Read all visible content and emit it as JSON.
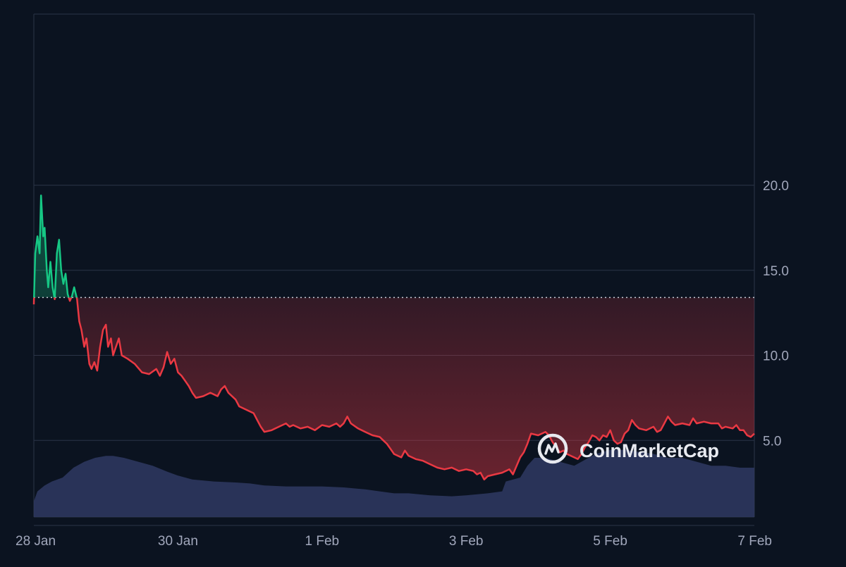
{
  "watermark": {
    "text": "CoinMarketCap",
    "icon": "coinmarketcap-logo-icon"
  },
  "colors": {
    "background": "#0b1320",
    "grid": "#2b3447",
    "up_line": "#16c784",
    "down_line": "#ea3943",
    "baseline": "#c9ced8",
    "volume_fill": "#2f3a63",
    "tick_text": "#a1a7bb"
  },
  "chart_data": {
    "type": "line",
    "title": "",
    "xlabel": "",
    "ylabel": "",
    "x_unit": "days since 28 Jan",
    "x_range": [
      0,
      10
    ],
    "ylim": [
      0,
      25
    ],
    "y_ticks": [
      5.0,
      10.0,
      15.0,
      20.0
    ],
    "y_tick_labels": [
      "5.0",
      "10.0",
      "15.0",
      "20.0"
    ],
    "x_ticks": [
      0,
      2,
      4,
      6,
      8,
      10
    ],
    "x_tick_labels": [
      "28 Jan",
      "30 Jan",
      "1 Feb",
      "3 Feb",
      "5 Feb",
      "7 Feb"
    ],
    "y_axis_position": "right",
    "grid": true,
    "baseline_value": 13.4,
    "series": [
      {
        "kind": "price",
        "points": [
          [
            0.0,
            13.0
          ],
          [
            0.02,
            16.0
          ],
          [
            0.05,
            17.0
          ],
          [
            0.08,
            16.0
          ],
          [
            0.1,
            19.4
          ],
          [
            0.13,
            17.0
          ],
          [
            0.15,
            17.5
          ],
          [
            0.18,
            15.0
          ],
          [
            0.2,
            14.0
          ],
          [
            0.23,
            15.5
          ],
          [
            0.26,
            14.0
          ],
          [
            0.29,
            13.3
          ],
          [
            0.32,
            16.0
          ],
          [
            0.35,
            16.8
          ],
          [
            0.38,
            15.0
          ],
          [
            0.41,
            14.2
          ],
          [
            0.44,
            14.8
          ],
          [
            0.47,
            13.6
          ],
          [
            0.5,
            13.2
          ],
          [
            0.53,
            13.5
          ],
          [
            0.56,
            14.0
          ],
          [
            0.6,
            13.3
          ],
          [
            0.63,
            12.0
          ],
          [
            0.66,
            11.5
          ],
          [
            0.7,
            10.5
          ],
          [
            0.73,
            11.0
          ],
          [
            0.77,
            9.5
          ],
          [
            0.8,
            9.2
          ],
          [
            0.84,
            9.6
          ],
          [
            0.88,
            9.1
          ],
          [
            0.92,
            10.5
          ],
          [
            0.96,
            11.5
          ],
          [
            1.0,
            11.8
          ],
          [
            1.03,
            10.5
          ],
          [
            1.07,
            11.0
          ],
          [
            1.1,
            10.0
          ],
          [
            1.14,
            10.5
          ],
          [
            1.18,
            11.0
          ],
          [
            1.22,
            10.0
          ],
          [
            1.3,
            9.8
          ],
          [
            1.4,
            9.5
          ],
          [
            1.5,
            9.0
          ],
          [
            1.6,
            8.9
          ],
          [
            1.7,
            9.2
          ],
          [
            1.75,
            8.8
          ],
          [
            1.8,
            9.3
          ],
          [
            1.85,
            10.2
          ],
          [
            1.9,
            9.5
          ],
          [
            1.95,
            9.8
          ],
          [
            2.0,
            9.0
          ],
          [
            2.05,
            8.8
          ],
          [
            2.1,
            8.5
          ],
          [
            2.15,
            8.2
          ],
          [
            2.2,
            7.8
          ],
          [
            2.25,
            7.5
          ],
          [
            2.35,
            7.6
          ],
          [
            2.45,
            7.8
          ],
          [
            2.55,
            7.6
          ],
          [
            2.6,
            8.0
          ],
          [
            2.65,
            8.2
          ],
          [
            2.7,
            7.8
          ],
          [
            2.8,
            7.4
          ],
          [
            2.85,
            7.0
          ],
          [
            2.9,
            6.9
          ],
          [
            3.0,
            6.7
          ],
          [
            3.05,
            6.6
          ],
          [
            3.1,
            6.2
          ],
          [
            3.15,
            5.8
          ],
          [
            3.2,
            5.5
          ],
          [
            3.3,
            5.6
          ],
          [
            3.4,
            5.8
          ],
          [
            3.5,
            6.0
          ],
          [
            3.55,
            5.8
          ],
          [
            3.6,
            5.9
          ],
          [
            3.7,
            5.7
          ],
          [
            3.8,
            5.8
          ],
          [
            3.9,
            5.6
          ],
          [
            4.0,
            5.9
          ],
          [
            4.1,
            5.8
          ],
          [
            4.2,
            6.0
          ],
          [
            4.25,
            5.8
          ],
          [
            4.3,
            6.0
          ],
          [
            4.35,
            6.4
          ],
          [
            4.4,
            6.0
          ],
          [
            4.5,
            5.7
          ],
          [
            4.6,
            5.5
          ],
          [
            4.7,
            5.3
          ],
          [
            4.8,
            5.2
          ],
          [
            4.85,
            5.0
          ],
          [
            4.9,
            4.8
          ],
          [
            4.95,
            4.5
          ],
          [
            5.0,
            4.2
          ],
          [
            5.05,
            4.1
          ],
          [
            5.1,
            4.0
          ],
          [
            5.15,
            4.4
          ],
          [
            5.2,
            4.1
          ],
          [
            5.3,
            3.9
          ],
          [
            5.4,
            3.8
          ],
          [
            5.5,
            3.6
          ],
          [
            5.6,
            3.4
          ],
          [
            5.7,
            3.3
          ],
          [
            5.8,
            3.4
          ],
          [
            5.9,
            3.2
          ],
          [
            6.0,
            3.3
          ],
          [
            6.1,
            3.2
          ],
          [
            6.15,
            3.0
          ],
          [
            6.2,
            3.1
          ],
          [
            6.25,
            2.7
          ],
          [
            6.3,
            2.9
          ],
          [
            6.4,
            3.0
          ],
          [
            6.5,
            3.1
          ],
          [
            6.6,
            3.3
          ],
          [
            6.65,
            3.0
          ],
          [
            6.7,
            3.5
          ],
          [
            6.75,
            4.0
          ],
          [
            6.8,
            4.3
          ],
          [
            6.85,
            4.8
          ],
          [
            6.9,
            5.4
          ],
          [
            7.0,
            5.3
          ],
          [
            7.1,
            5.5
          ],
          [
            7.15,
            5.3
          ],
          [
            7.2,
            4.9
          ],
          [
            7.25,
            4.6
          ],
          [
            7.3,
            4.3
          ],
          [
            7.35,
            4.4
          ],
          [
            7.4,
            4.2
          ],
          [
            7.45,
            4.1
          ],
          [
            7.5,
            4.0
          ],
          [
            7.55,
            3.9
          ],
          [
            7.6,
            4.2
          ],
          [
            7.65,
            4.6
          ],
          [
            7.7,
            4.9
          ],
          [
            7.75,
            5.3
          ],
          [
            7.8,
            5.2
          ],
          [
            7.85,
            5.0
          ],
          [
            7.9,
            5.3
          ],
          [
            7.95,
            5.2
          ],
          [
            8.0,
            5.6
          ],
          [
            8.05,
            5.0
          ],
          [
            8.1,
            4.8
          ],
          [
            8.15,
            4.9
          ],
          [
            8.2,
            5.4
          ],
          [
            8.25,
            5.6
          ],
          [
            8.3,
            6.2
          ],
          [
            8.35,
            5.9
          ],
          [
            8.4,
            5.7
          ],
          [
            8.5,
            5.6
          ],
          [
            8.6,
            5.8
          ],
          [
            8.65,
            5.5
          ],
          [
            8.7,
            5.6
          ],
          [
            8.75,
            6.0
          ],
          [
            8.8,
            6.4
          ],
          [
            8.85,
            6.1
          ],
          [
            8.9,
            5.9
          ],
          [
            9.0,
            6.0
          ],
          [
            9.1,
            5.9
          ],
          [
            9.15,
            6.3
          ],
          [
            9.2,
            6.0
          ],
          [
            9.3,
            6.1
          ],
          [
            9.4,
            6.0
          ],
          [
            9.5,
            6.0
          ],
          [
            9.55,
            5.7
          ],
          [
            9.6,
            5.8
          ],
          [
            9.7,
            5.7
          ],
          [
            9.75,
            5.9
          ],
          [
            9.8,
            5.6
          ],
          [
            9.85,
            5.6
          ],
          [
            9.9,
            5.3
          ],
          [
            9.95,
            5.2
          ],
          [
            10.0,
            5.4
          ]
        ]
      },
      {
        "kind": "volume",
        "points": [
          [
            0.0,
            0.8
          ],
          [
            0.05,
            1.3
          ],
          [
            0.15,
            1.6
          ],
          [
            0.25,
            1.8
          ],
          [
            0.4,
            2.0
          ],
          [
            0.55,
            2.5
          ],
          [
            0.7,
            2.8
          ],
          [
            0.85,
            3.0
          ],
          [
            1.0,
            3.1
          ],
          [
            1.1,
            3.1
          ],
          [
            1.25,
            3.0
          ],
          [
            1.45,
            2.8
          ],
          [
            1.65,
            2.6
          ],
          [
            1.85,
            2.3
          ],
          [
            2.0,
            2.1
          ],
          [
            2.2,
            1.9
          ],
          [
            2.5,
            1.8
          ],
          [
            2.8,
            1.75
          ],
          [
            3.0,
            1.7
          ],
          [
            3.2,
            1.6
          ],
          [
            3.5,
            1.55
          ],
          [
            4.0,
            1.55
          ],
          [
            4.3,
            1.5
          ],
          [
            4.6,
            1.4
          ],
          [
            4.8,
            1.3
          ],
          [
            5.0,
            1.2
          ],
          [
            5.2,
            1.2
          ],
          [
            5.5,
            1.1
          ],
          [
            5.8,
            1.05
          ],
          [
            6.0,
            1.1
          ],
          [
            6.3,
            1.2
          ],
          [
            6.5,
            1.3
          ],
          [
            6.55,
            1.8
          ],
          [
            6.75,
            2.0
          ],
          [
            6.85,
            2.6
          ],
          [
            6.95,
            3.0
          ],
          [
            7.1,
            3.0
          ],
          [
            7.3,
            2.8
          ],
          [
            7.5,
            2.6
          ],
          [
            7.65,
            2.9
          ],
          [
            7.8,
            3.2
          ],
          [
            8.0,
            3.4
          ],
          [
            8.2,
            3.4
          ],
          [
            8.4,
            3.3
          ],
          [
            8.6,
            3.2
          ],
          [
            8.8,
            3.0
          ],
          [
            9.0,
            3.0
          ],
          [
            9.2,
            2.8
          ],
          [
            9.4,
            2.6
          ],
          [
            9.6,
            2.6
          ],
          [
            9.8,
            2.5
          ],
          [
            10.0,
            2.5
          ]
        ]
      }
    ]
  }
}
